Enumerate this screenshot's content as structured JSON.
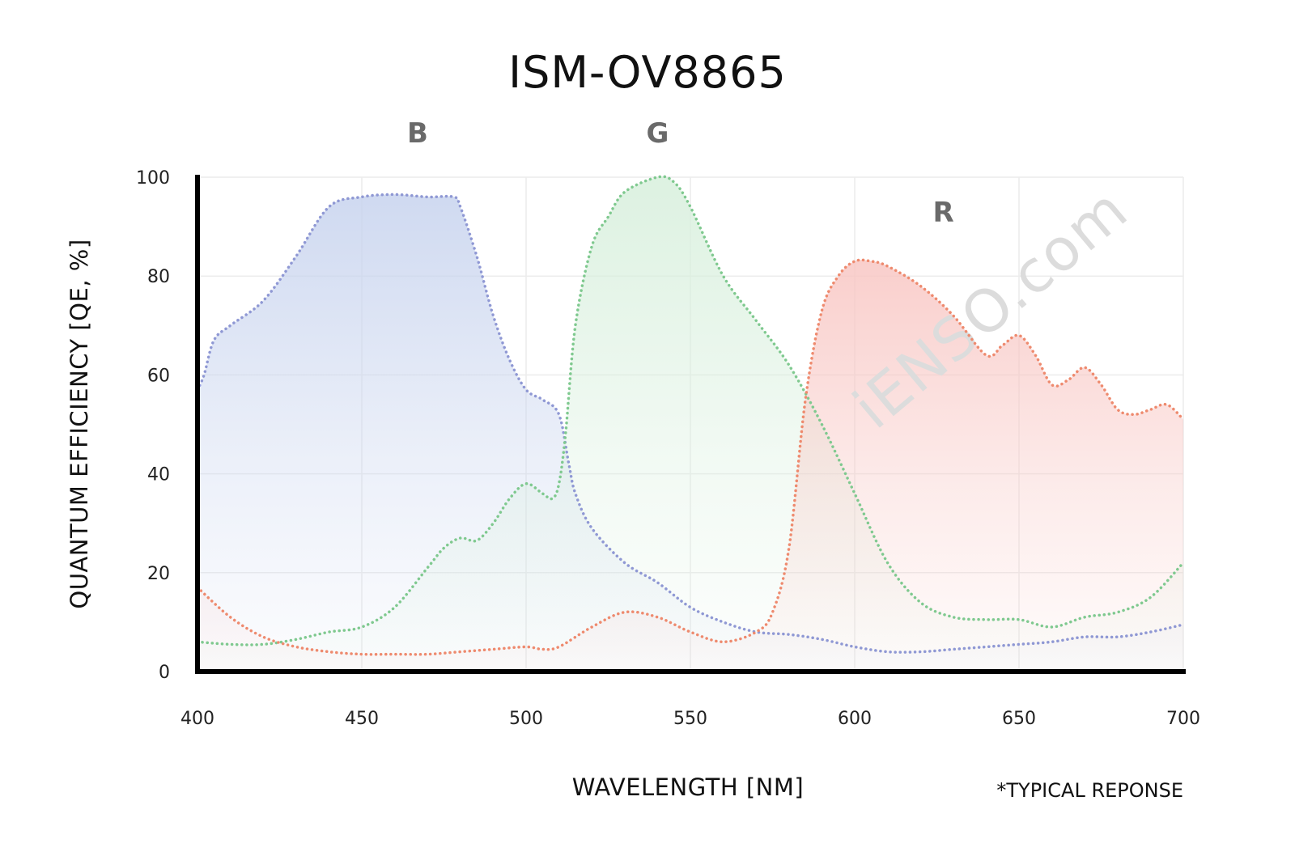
{
  "chart_data": {
    "type": "line",
    "title": "ISM-OV8865",
    "xlabel": "WAVELENGTH [NM]",
    "ylabel": "QUANTUM EFFICIENCY [QE, %]",
    "note": "*TYPICAL REPONSE",
    "watermark": "iENSO.com",
    "xlim": [
      400,
      700
    ],
    "ylim": [
      0,
      100
    ],
    "xticks": [
      400,
      450,
      500,
      550,
      600,
      650,
      700
    ],
    "yticks": [
      0,
      20,
      40,
      60,
      80,
      100
    ],
    "grid": true,
    "line_style": "dotted",
    "fill_under": true,
    "series": [
      {
        "name": "B",
        "label_position": [
          467,
          107
        ],
        "color": "#8f98d4",
        "fill_color": "#c7d3ee",
        "x": [
          400,
          402,
          405,
          410,
          420,
          430,
          440,
          450,
          460,
          470,
          478,
          480,
          485,
          490,
          495,
          500,
          505,
          510,
          513,
          515,
          520,
          530,
          540,
          550,
          560,
          570,
          580,
          590,
          600,
          610,
          620,
          630,
          640,
          650,
          660,
          670,
          680,
          690,
          700
        ],
        "y": [
          57,
          60,
          67,
          70,
          75,
          84,
          94,
          96,
          96.5,
          96,
          96,
          94,
          84,
          72,
          63,
          57,
          55,
          52,
          42,
          36,
          29,
          22,
          18,
          13,
          10,
          8,
          7.5,
          6.5,
          5,
          4,
          4,
          4.5,
          5,
          5.5,
          6,
          7,
          7,
          8,
          9.5
        ]
      },
      {
        "name": "G",
        "label_position": [
          540,
          107
        ],
        "color": "#7fc98f",
        "fill_color": "#d7efdc",
        "x": [
          400,
          410,
          420,
          430,
          440,
          450,
          460,
          470,
          475,
          480,
          485,
          490,
          495,
          500,
          505,
          508,
          510,
          512,
          515,
          520,
          525,
          530,
          540,
          545,
          550,
          560,
          570,
          580,
          590,
          600,
          610,
          620,
          630,
          640,
          650,
          660,
          670,
          680,
          690,
          700
        ],
        "y": [
          6,
          5.5,
          5.5,
          6.5,
          8,
          9,
          13,
          21,
          25,
          27,
          26.5,
          30,
          35,
          38,
          36,
          35,
          38,
          48,
          70,
          86,
          92,
          97,
          100,
          99,
          94,
          80,
          71,
          62,
          50,
          36,
          22,
          14,
          11,
          10.5,
          10.5,
          9,
          11,
          12,
          15,
          22
        ]
      },
      {
        "name": "R",
        "label_position": [
          627,
          91
        ],
        "color": "#ee8a6e",
        "fill_color": "#f8c6c3",
        "x": [
          400,
          410,
          420,
          430,
          440,
          450,
          460,
          470,
          480,
          490,
          500,
          505,
          510,
          520,
          530,
          540,
          550,
          560,
          570,
          575,
          580,
          585,
          590,
          595,
          600,
          605,
          610,
          620,
          630,
          640,
          645,
          650,
          655,
          660,
          665,
          670,
          675,
          680,
          685,
          690,
          695,
          700
        ],
        "y": [
          17,
          11,
          7,
          5,
          4,
          3.5,
          3.5,
          3.5,
          4,
          4.5,
          5,
          4.5,
          5,
          9,
          12,
          11,
          8,
          6,
          8,
          12,
          25,
          55,
          73,
          80,
          83,
          83,
          82,
          78,
          72,
          64,
          66,
          68,
          64,
          58,
          59,
          61.5,
          58,
          53,
          52,
          53,
          54,
          51
        ]
      }
    ]
  }
}
